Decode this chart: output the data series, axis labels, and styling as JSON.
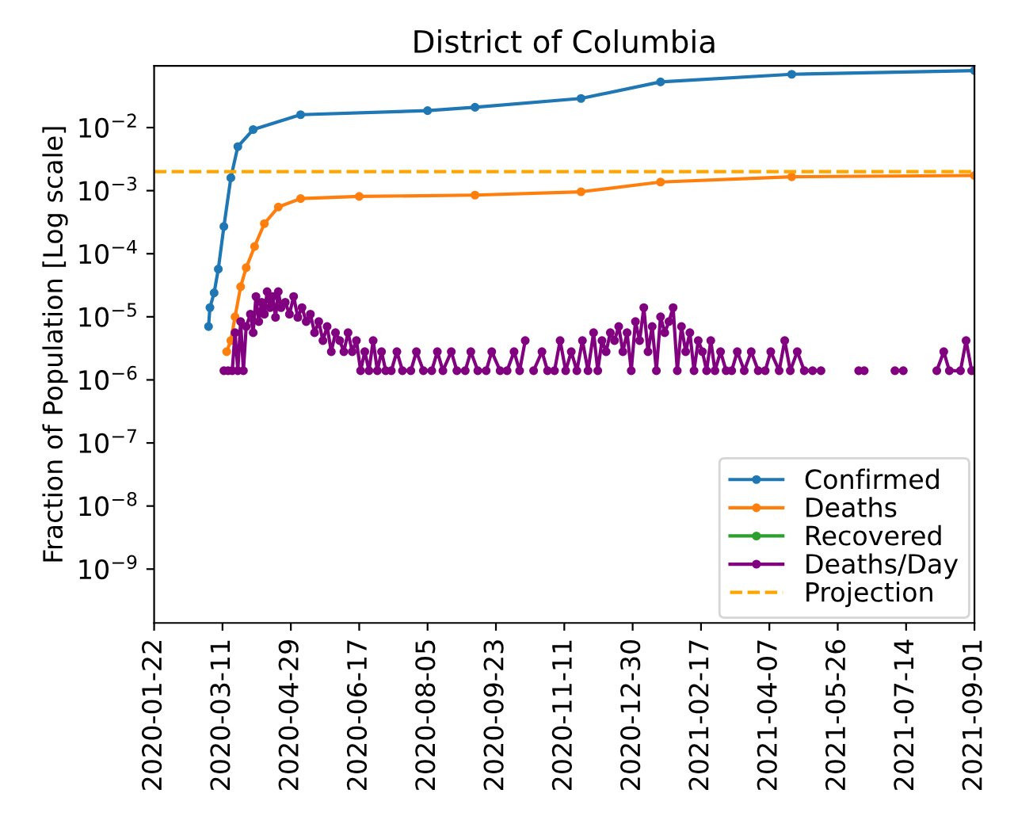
{
  "chart_data": {
    "type": "line",
    "title": "District of Columbia",
    "ylabel": "Fraction of Population [Log scale]",
    "log": "y",
    "grid": false,
    "legend": "bottom right",
    "marker": "circle",
    "line_style": "solid",
    "xlim": [
      "2020-01-22",
      "2021-09-01"
    ],
    "xticks": [
      "2020-01-22",
      "2020-03-11",
      "2020-04-29",
      "2020-06-17",
      "2020-08-05",
      "2020-09-23",
      "2020-11-11",
      "2020-12-30",
      "2021-02-17",
      "2021-04-07",
      "2021-05-26",
      "2021-07-14",
      "2021-09-01"
    ],
    "ylim": [
      1.4e-10,
      0.095
    ],
    "yticks": [
      {
        "value": 1e-09,
        "label": "10$^{−9}$"
      },
      {
        "value": 1e-08,
        "label": "10$^{−8}$"
      },
      {
        "value": 1e-07,
        "label": "10$^{−7}$"
      },
      {
        "value": 1e-06,
        "label": "10$^{−6}$"
      },
      {
        "value": 1e-05,
        "label": "10$^{−5}$"
      },
      {
        "value": 0.0001,
        "label": "10$^{−4}$"
      },
      {
        "value": 0.001,
        "label": "10$^{−3}$"
      },
      {
        "value": 0.01,
        "label": "10$^{−2}$"
      }
    ],
    "series": [
      {
        "name": "Confirmed",
        "color": "#1f77b4",
        "x": [
          "2020-03-01",
          "2020-03-02",
          "2020-03-05",
          "2020-03-08",
          "2020-03-12",
          "2020-03-17",
          "2020-03-22",
          "2020-04-02",
          "2020-05-06",
          "2020-08-05",
          "2020-09-08",
          "2020-11-23",
          "2021-01-19",
          "2021-04-23",
          "2021-09-01"
        ],
        "values": [
          7e-06,
          1.4e-05,
          2.4e-05,
          5.7e-05,
          0.00027,
          0.0016,
          0.005,
          0.0093,
          0.016,
          0.0186,
          0.021,
          0.029,
          0.053,
          0.07,
          0.08
        ]
      },
      {
        "name": "Deaths",
        "color": "#ff7f0e",
        "x": [
          "2020-03-14",
          "2020-03-17",
          "2020-03-20",
          "2020-03-24",
          "2020-03-28",
          "2020-04-03",
          "2020-04-10",
          "2020-04-20",
          "2020-05-06",
          "2020-06-17",
          "2020-09-08",
          "2020-11-23",
          "2021-01-19",
          "2021-04-23",
          "2021-09-01"
        ],
        "values": [
          2.8e-06,
          4.2e-06,
          1e-05,
          3e-05,
          6e-05,
          0.00013,
          0.0003,
          0.00055,
          0.00075,
          0.00081,
          0.00085,
          0.00096,
          0.00137,
          0.00166,
          0.00174
        ]
      },
      {
        "name": "Recovered",
        "color": "#2ca02c"
      },
      {
        "name": "Deaths/Day",
        "color": "#800080",
        "x": [
          "2020-03-12",
          "2020-03-15",
          "2020-03-18",
          "2020-03-20",
          "2020-03-22",
          "2020-03-24",
          "2020-03-26",
          "2020-03-28",
          "2020-03-31",
          "2020-04-02",
          "2020-04-04",
          "2020-04-06",
          "2020-04-08",
          "2020-04-10",
          "2020-04-12",
          "2020-04-14",
          "2020-04-16",
          "2020-04-18",
          "2020-04-20",
          "2020-04-22",
          "2020-04-25",
          "2020-04-28",
          "2020-05-01",
          "2020-05-04",
          "2020-05-07",
          "2020-05-10",
          "2020-05-13",
          "2020-05-16",
          "2020-05-19",
          "2020-05-22",
          "2020-05-25",
          "2020-05-28",
          "2020-05-31",
          "2020-06-03",
          "2020-06-06",
          "2020-06-09",
          "2020-06-12",
          "2020-06-15",
          "2020-06-18",
          "2020-06-21",
          "2020-06-24",
          "2020-06-27",
          "2020-06-30",
          "2020-07-03",
          "2020-07-06",
          "2020-07-10",
          "2020-07-14",
          "2020-07-18",
          "2020-07-24",
          "2020-07-28",
          "2020-08-02",
          "2020-08-08",
          "2020-08-12",
          "2020-08-16",
          "2020-08-22",
          "2020-08-26",
          "2020-09-01",
          "2020-09-05",
          "2020-09-10",
          "2020-09-16",
          "2020-09-20",
          "2020-09-26",
          "2020-10-01",
          "2020-10-06",
          "2020-10-10",
          "2020-10-14",
          "2020-10-18",
          "2020-10-20",
          "2020-10-26",
          "2020-10-30",
          "2020-11-04",
          "2020-11-08",
          "2020-11-12",
          "2020-11-16",
          "2020-11-20",
          "2020-11-24",
          "2020-11-28",
          "2020-12-02",
          "2020-12-05",
          "2020-12-08",
          "2020-12-11",
          "2020-12-14",
          "2020-12-17",
          "2020-12-20",
          "2020-12-23",
          "2020-12-26",
          "2020-12-29",
          "2021-01-01",
          "2021-01-04",
          "2021-01-07",
          "2021-01-10",
          "2021-01-13",
          "2021-01-16",
          "2021-01-19",
          "2021-01-22",
          "2021-01-25",
          "2021-01-28",
          "2021-01-31",
          "2021-02-03",
          "2021-02-06",
          "2021-02-09",
          "2021-02-12",
          "2021-02-15",
          "2021-02-18",
          "2021-02-21",
          "2021-02-24",
          "2021-02-27",
          "2021-03-03",
          "2021-03-07",
          "2021-03-11",
          "2021-03-15",
          "2021-03-20",
          "2021-03-25",
          "2021-03-30",
          "2021-04-04",
          "2021-04-08",
          "2021-04-14",
          "2021-04-18",
          "2021-04-22",
          "2021-04-27",
          "2021-05-02",
          "2021-05-08",
          "2021-05-14",
          "2021-05-18",
          "2021-06-10",
          "2021-06-12",
          "2021-06-14",
          "2021-06-20",
          "2021-07-06",
          "2021-07-12",
          "2021-07-20",
          "2021-08-05",
          "2021-08-10",
          "2021-08-14",
          "2021-08-22",
          "2021-08-26",
          "2021-08-30",
          "2021-09-01"
        ],
        "values": [
          1.4e-06,
          1.4e-06,
          1.4e-06,
          5.6e-06,
          1.4e-06,
          8.4e-06,
          1.4e-06,
          7e-06,
          1.1e-05,
          5.6e-06,
          2.1e-05,
          8.4e-06,
          1.7e-05,
          1.1e-05,
          2.5e-05,
          1.4e-05,
          2.1e-05,
          9.8e-06,
          2.5e-05,
          1.4e-05,
          1.7e-05,
          1.1e-05,
          2.1e-05,
          9.8e-06,
          1.4e-05,
          8.4e-06,
          1.1e-05,
          5.6e-06,
          8.4e-06,
          4.2e-06,
          7e-06,
          2.8e-06,
          5.6e-06,
          4.2e-06,
          2.8e-06,
          5.6e-06,
          2.8e-06,
          4.2e-06,
          1.4e-06,
          2.8e-06,
          1.4e-06,
          4.2e-06,
          1.4e-06,
          2.8e-06,
          1.4e-06,
          1.4e-06,
          2.8e-06,
          1.4e-06,
          1.4e-06,
          2.8e-06,
          1.4e-06,
          1.4e-06,
          2.8e-06,
          1.4e-06,
          2.8e-06,
          1.4e-06,
          1.4e-06,
          2.8e-06,
          1.4e-06,
          1.4e-06,
          2.8e-06,
          1.4e-06,
          1.4e-06,
          2.8e-06,
          1.4e-06,
          4.2e-06,
          null,
          1.4e-06,
          2.8e-06,
          1.4e-06,
          1.4e-06,
          4.2e-06,
          1.4e-06,
          2.8e-06,
          1.4e-06,
          4.2e-06,
          1.4e-06,
          5.6e-06,
          1.4e-06,
          4.2e-06,
          2.8e-06,
          5.6e-06,
          4.2e-06,
          7e-06,
          2.8e-06,
          5.6e-06,
          1.4e-06,
          8.4e-06,
          4.2e-06,
          1.4e-05,
          2.8e-06,
          7e-06,
          1.4e-06,
          1e-05,
          5.6e-06,
          8.4e-06,
          1.4e-05,
          1.4e-06,
          7e-06,
          2.8e-06,
          5.6e-06,
          1.4e-06,
          4.2e-06,
          2.8e-06,
          1.4e-06,
          4.2e-06,
          1.4e-06,
          2.8e-06,
          1.4e-06,
          1.4e-06,
          2.8e-06,
          1.4e-06,
          2.8e-06,
          1.4e-06,
          1.4e-06,
          2.8e-06,
          1.4e-06,
          4.2e-06,
          1.4e-06,
          2.8e-06,
          1.4e-06,
          1.4e-06,
          1.4e-06,
          null,
          1.4e-06,
          null,
          1.4e-06,
          null,
          1.4e-06,
          1.4e-06,
          null,
          1.4e-06,
          2.8e-06,
          1.4e-06,
          1.4e-06,
          4.2e-06,
          1.4e-06,
          1.4e-06
        ]
      }
    ],
    "ref_lines": [
      {
        "axis": "y",
        "value": 0.002,
        "label": "Projection",
        "color": "#ffa500",
        "line_style": "dashed"
      }
    ]
  }
}
